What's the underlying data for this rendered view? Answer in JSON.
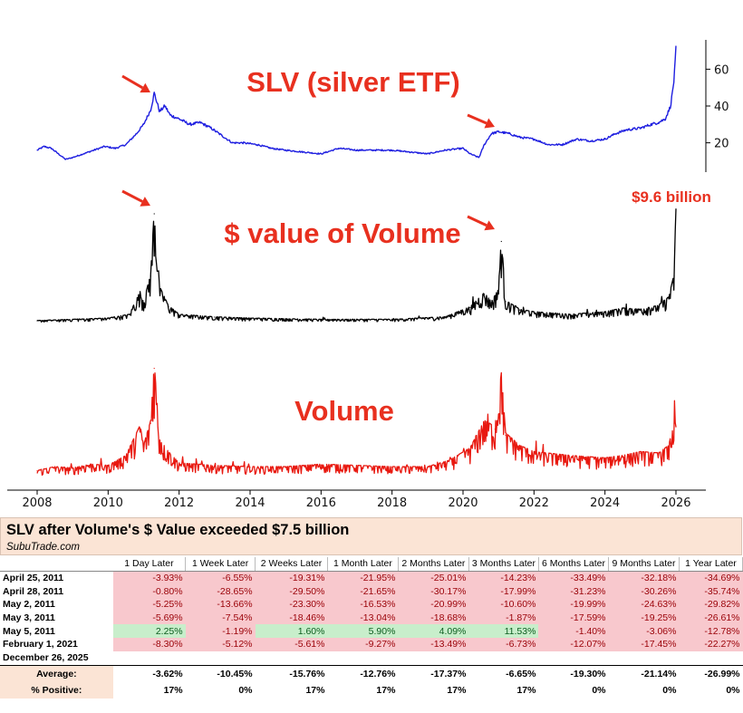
{
  "chart_data": [
    {
      "type": "line",
      "title": "SLV (silver ETF)",
      "xlim": [
        2008,
        2026
      ],
      "x_ticks": [
        2008,
        2010,
        2012,
        2014,
        2016,
        2018,
        2020,
        2022,
        2024,
        2026
      ],
      "ylim": [
        8,
        72
      ],
      "y_ticks": [
        20,
        40,
        60
      ],
      "color": "#1f1fe0",
      "series": [
        {
          "x": [
            2008.0,
            2008.2,
            2008.4,
            2008.6,
            2008.8,
            2009.0,
            2009.3,
            2009.6,
            2009.9,
            2010.2,
            2010.5,
            2010.8,
            2011.0,
            2011.2,
            2011.3,
            2011.45,
            2011.6,
            2011.75,
            2012.0,
            2012.3,
            2012.6,
            2012.9,
            2013.2,
            2013.5,
            2013.8,
            2014.2,
            2014.6,
            2015.0,
            2015.5,
            2016.0,
            2016.5,
            2017.0,
            2017.5,
            2018.0,
            2018.5,
            2019.0,
            2019.5,
            2020.0,
            2020.2,
            2020.45,
            2020.6,
            2020.8,
            2021.0,
            2021.3,
            2021.6,
            2022.0,
            2022.4,
            2022.8,
            2023.2,
            2023.6,
            2024.0,
            2024.3,
            2024.6,
            2025.0,
            2025.3,
            2025.5,
            2025.7,
            2025.85,
            2025.95,
            2026.0
          ],
          "y": [
            16,
            18,
            17,
            14,
            11,
            12,
            14,
            16,
            18,
            17,
            19,
            25,
            30,
            38,
            47,
            37,
            40,
            35,
            33,
            30,
            31,
            28,
            24,
            20,
            20,
            19,
            17,
            16,
            15,
            14,
            17,
            16,
            16,
            16,
            15,
            14,
            16,
            17,
            14,
            12,
            19,
            25,
            26,
            25,
            23,
            22,
            19,
            19,
            22,
            21,
            22,
            25,
            27,
            28,
            30,
            31,
            33,
            40,
            55,
            71
          ]
        }
      ]
    },
    {
      "type": "line",
      "title": "$ value of Volume",
      "xlim": [
        2008,
        2026
      ],
      "color": "#000000",
      "peak_label": "$9.6 billion",
      "series": [
        {
          "x": [
            2008.0,
            2009.0,
            2010.0,
            2010.6,
            2010.9,
            2011.0,
            2011.2,
            2011.3,
            2011.45,
            2011.7,
            2012.0,
            2013.0,
            2014.0,
            2016.0,
            2018.0,
            2019.5,
            2020.2,
            2020.6,
            2020.8,
            2021.0,
            2021.08,
            2021.2,
            2021.6,
            2022.0,
            2023.0,
            2024.0,
            2024.5,
            2025.0,
            2025.5,
            2025.8,
            2025.95,
            2026.0
          ],
          "y": [
            0.3,
            0.4,
            0.5,
            0.8,
            2.6,
            1.8,
            4.0,
            9.2,
            3.0,
            1.5,
            0.8,
            0.6,
            0.5,
            0.4,
            0.4,
            0.6,
            1.4,
            2.5,
            1.8,
            2.8,
            6.9,
            1.9,
            1.2,
            1.0,
            0.8,
            1.0,
            1.3,
            1.2,
            1.5,
            2.2,
            4.0,
            9.6
          ]
        }
      ]
    },
    {
      "type": "line",
      "title": "Volume",
      "xlim": [
        2008,
        2026
      ],
      "color": "#e8180f",
      "series": [
        {
          "x": [
            2008.0,
            2008.5,
            2009.0,
            2009.5,
            2010.0,
            2010.5,
            2010.9,
            2011.0,
            2011.2,
            2011.3,
            2011.45,
            2011.7,
            2012.0,
            2013.0,
            2014.0,
            2015.0,
            2016.0,
            2017.0,
            2018.0,
            2019.0,
            2019.6,
            2020.2,
            2020.6,
            2020.9,
            2021.08,
            2021.2,
            2021.6,
            2022.0,
            2023.0,
            2024.0,
            2024.5,
            2025.0,
            2025.5,
            2025.8,
            2025.95,
            2026.0
          ],
          "y": [
            1.0,
            1.3,
            1.2,
            1.5,
            1.4,
            2.2,
            4.6,
            3.0,
            5.0,
            9.6,
            3.5,
            2.5,
            1.6,
            1.4,
            1.3,
            1.3,
            1.5,
            1.4,
            1.3,
            1.3,
            1.8,
            2.8,
            5.0,
            4.5,
            8.8,
            4.0,
            3.0,
            2.5,
            2.2,
            2.0,
            2.2,
            2.5,
            2.4,
            3.0,
            5.0,
            4.7
          ]
        }
      ]
    }
  ],
  "table": {
    "title": "SLV after Volume's $ Value exceeded $7.5 billion",
    "site": "SubuTrade.com",
    "columns": [
      "1 Day Later",
      "1 Week Later",
      "2 Weeks Later",
      "1 Month Later",
      "2 Months Later",
      "3 Months Later",
      "6 Months Later",
      "9 Months Later",
      "1 Year Later"
    ],
    "rows": [
      {
        "date": "April 25, 2011",
        "values": [
          "-3.93%",
          "-6.55%",
          "-19.31%",
          "-21.95%",
          "-25.01%",
          "-14.23%",
          "-33.49%",
          "-32.18%",
          "-34.69%"
        ]
      },
      {
        "date": "April 28, 2011",
        "values": [
          "-0.80%",
          "-28.65%",
          "-29.50%",
          "-21.65%",
          "-30.17%",
          "-17.99%",
          "-31.23%",
          "-30.26%",
          "-35.74%"
        ]
      },
      {
        "date": "May 2, 2011",
        "values": [
          "-5.25%",
          "-13.66%",
          "-23.30%",
          "-16.53%",
          "-20.99%",
          "-10.60%",
          "-19.99%",
          "-24.63%",
          "-29.82%"
        ]
      },
      {
        "date": "May 3, 2011",
        "values": [
          "-5.69%",
          "-7.54%",
          "-18.46%",
          "-13.04%",
          "-18.68%",
          "-1.87%",
          "-17.59%",
          "-19.25%",
          "-26.61%"
        ]
      },
      {
        "date": "May 5, 2011",
        "values": [
          "2.25%",
          "-1.19%",
          "1.60%",
          "5.90%",
          "4.09%",
          "11.53%",
          "-1.40%",
          "-3.06%",
          "-12.78%"
        ]
      },
      {
        "date": "February 1, 2021",
        "values": [
          "-8.30%",
          "-5.12%",
          "-5.61%",
          "-9.27%",
          "-13.49%",
          "-6.73%",
          "-12.07%",
          "-17.45%",
          "-22.27%"
        ]
      },
      {
        "date": "December 26, 2025",
        "values": [
          "",
          "",
          "",
          "",
          "",
          "",
          "",
          "",
          ""
        ]
      }
    ],
    "average_label": "Average:",
    "averages": [
      "-3.62%",
      "-10.45%",
      "-15.76%",
      "-12.76%",
      "-17.37%",
      "-6.65%",
      "-19.30%",
      "-21.14%",
      "-26.99%"
    ],
    "positive_label": "% Positive:",
    "positives": [
      "17%",
      "0%",
      "17%",
      "17%",
      "17%",
      "17%",
      "0%",
      "0%",
      "0%"
    ],
    "colors": {
      "negative_bg": "#f8c8cd",
      "positive_bg": "#c8eecb",
      "header_bg": "#fbe4d5"
    }
  }
}
